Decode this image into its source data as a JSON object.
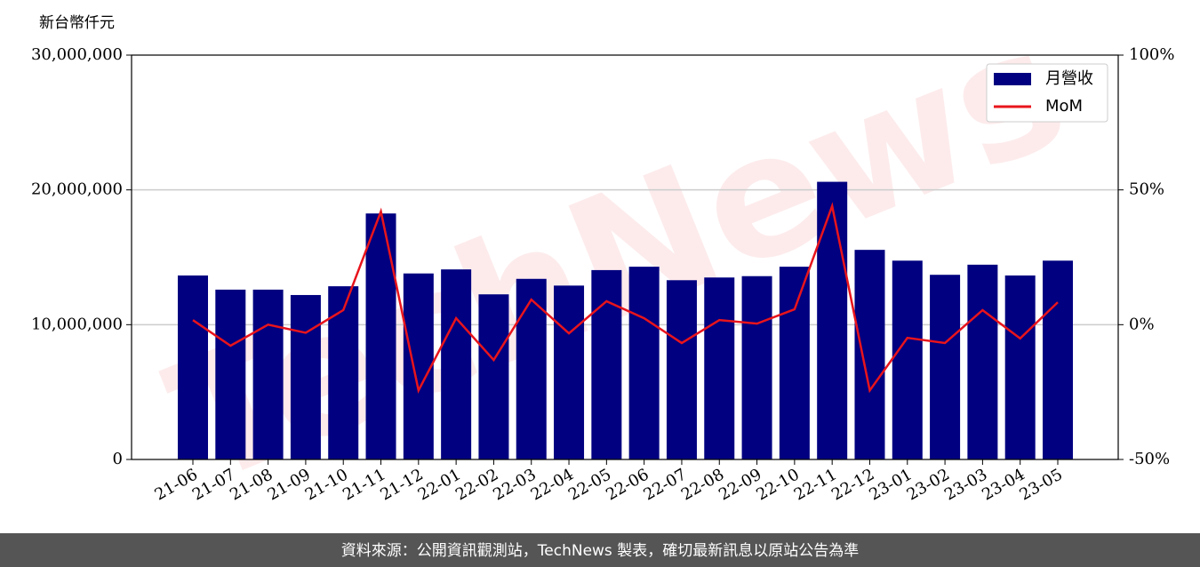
{
  "chart_data": {
    "type": "bar",
    "y_label": "新台幣仟元",
    "watermark": "TechNews",
    "categories": [
      "21-06",
      "21-07",
      "21-08",
      "21-09",
      "21-10",
      "21-11",
      "21-12",
      "22-01",
      "22-02",
      "22-03",
      "22-04",
      "22-05",
      "22-06",
      "22-07",
      "22-08",
      "22-09",
      "22-10",
      "22-11",
      "22-12",
      "23-01",
      "23-02",
      "23-03",
      "23-04",
      "23-05"
    ],
    "series": [
      {
        "name": "月營收",
        "type": "bar",
        "color": "#000080",
        "values": [
          13650000,
          12600000,
          12600000,
          12200000,
          12850000,
          18250000,
          13800000,
          14100000,
          12250000,
          13400000,
          12900000,
          14050000,
          14300000,
          13300000,
          13500000,
          13600000,
          14300000,
          20600000,
          15550000,
          14750000,
          13700000,
          14450000,
          13650000,
          14750000
        ]
      },
      {
        "name": "MoM",
        "type": "line",
        "color": "#e8141c",
        "axis": "y2",
        "values": [
          1.7,
          -7.8,
          0,
          -3,
          5.4,
          42,
          -24.4,
          2.4,
          -13.1,
          9.3,
          -3.2,
          8.7,
          2.4,
          -6.8,
          1.7,
          0.4,
          5.7,
          44,
          -24.4,
          -4.9,
          -6.8,
          5.4,
          -5.1,
          8.3
        ]
      }
    ],
    "ylim": [
      0,
      30000000
    ],
    "yticks": [
      0,
      {
        "value": 10000000,
        "label": "10,000,000"
      },
      {
        "value": 20000000,
        "label": "20,000,000"
      },
      {
        "value": 30000000,
        "label": "30,000,000"
      }
    ],
    "y2lim": [
      -50,
      100
    ],
    "y2ticks": [
      {
        "value": -50,
        "label": "-50%"
      },
      {
        "value": 0,
        "label": "0%"
      },
      {
        "value": 50,
        "label": "50%"
      },
      {
        "value": 100,
        "label": "100%"
      }
    ],
    "grid": true,
    "legend": "upper right"
  },
  "footer": "資料來源：公開資訊觀測站，TechNews 製表，確切最新訊息以原站公告為準"
}
